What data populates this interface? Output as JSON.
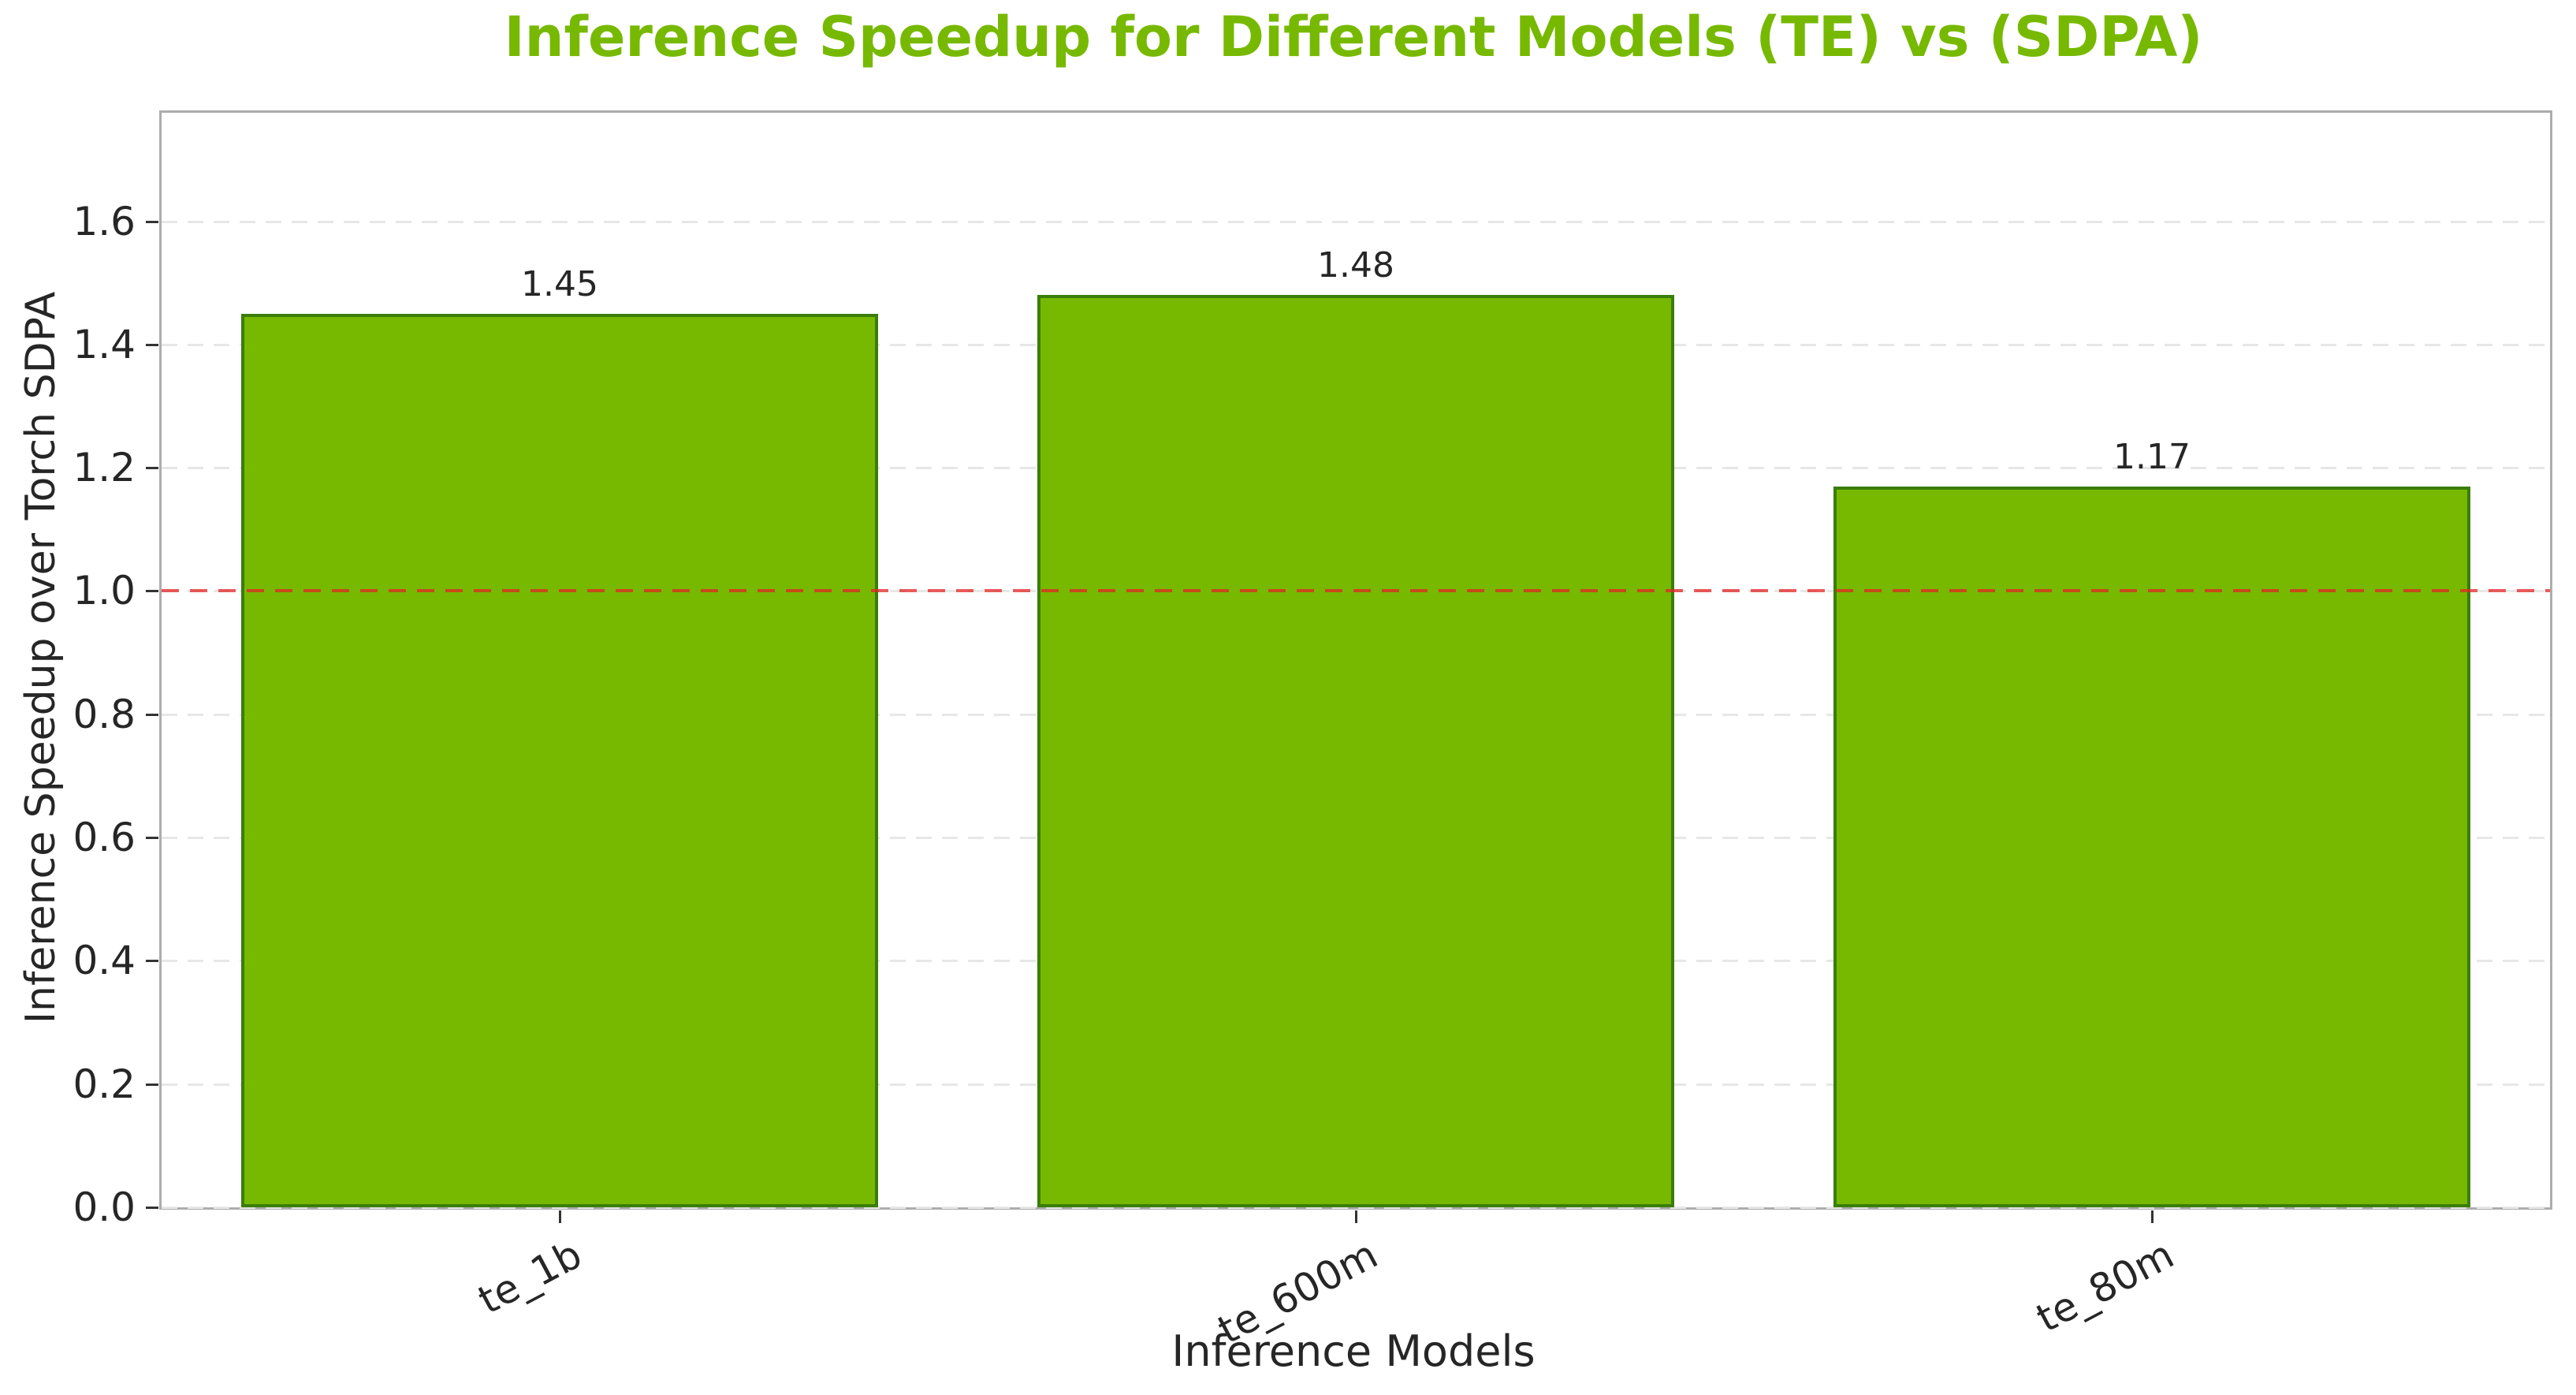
{
  "chart_data": {
    "type": "bar",
    "title": "Inference Speedup for Different Models (TE) vs (SDPA)",
    "xlabel": "Inference Models",
    "ylabel": "Inference Speedup over Torch SDPA",
    "categories": [
      "te_1b",
      "te_600m",
      "te_80m"
    ],
    "values": [
      1.45,
      1.48,
      1.17
    ],
    "value_labels": [
      "1.45",
      "1.48",
      "1.17"
    ],
    "ylim": [
      0,
      1.776
    ],
    "yticks": [
      0,
      0.2,
      0.4,
      0.6,
      0.8,
      1.0,
      1.2,
      1.4,
      1.6
    ],
    "ytick_labels": [
      "0.0",
      "0.2",
      "0.4",
      "0.6",
      "0.8",
      "1.0",
      "1.2",
      "1.4",
      "1.6"
    ],
    "grid": "horizontal-dashed",
    "legend": "none",
    "bar_width_fraction": 0.8,
    "xtick_rotation_deg": 28,
    "reference_line": {
      "y": 1.0,
      "style": "dashed",
      "color": "#e32424",
      "alpha": 0.75
    },
    "colors": {
      "bar_fill": "#76b900",
      "bar_edge": "#3a7d0a",
      "title": "#76b900",
      "grid_line": "#e7e7e7",
      "spine": "#adadad",
      "text": "#262626",
      "tick_mark": "#333333",
      "background": "#ffffff"
    }
  }
}
